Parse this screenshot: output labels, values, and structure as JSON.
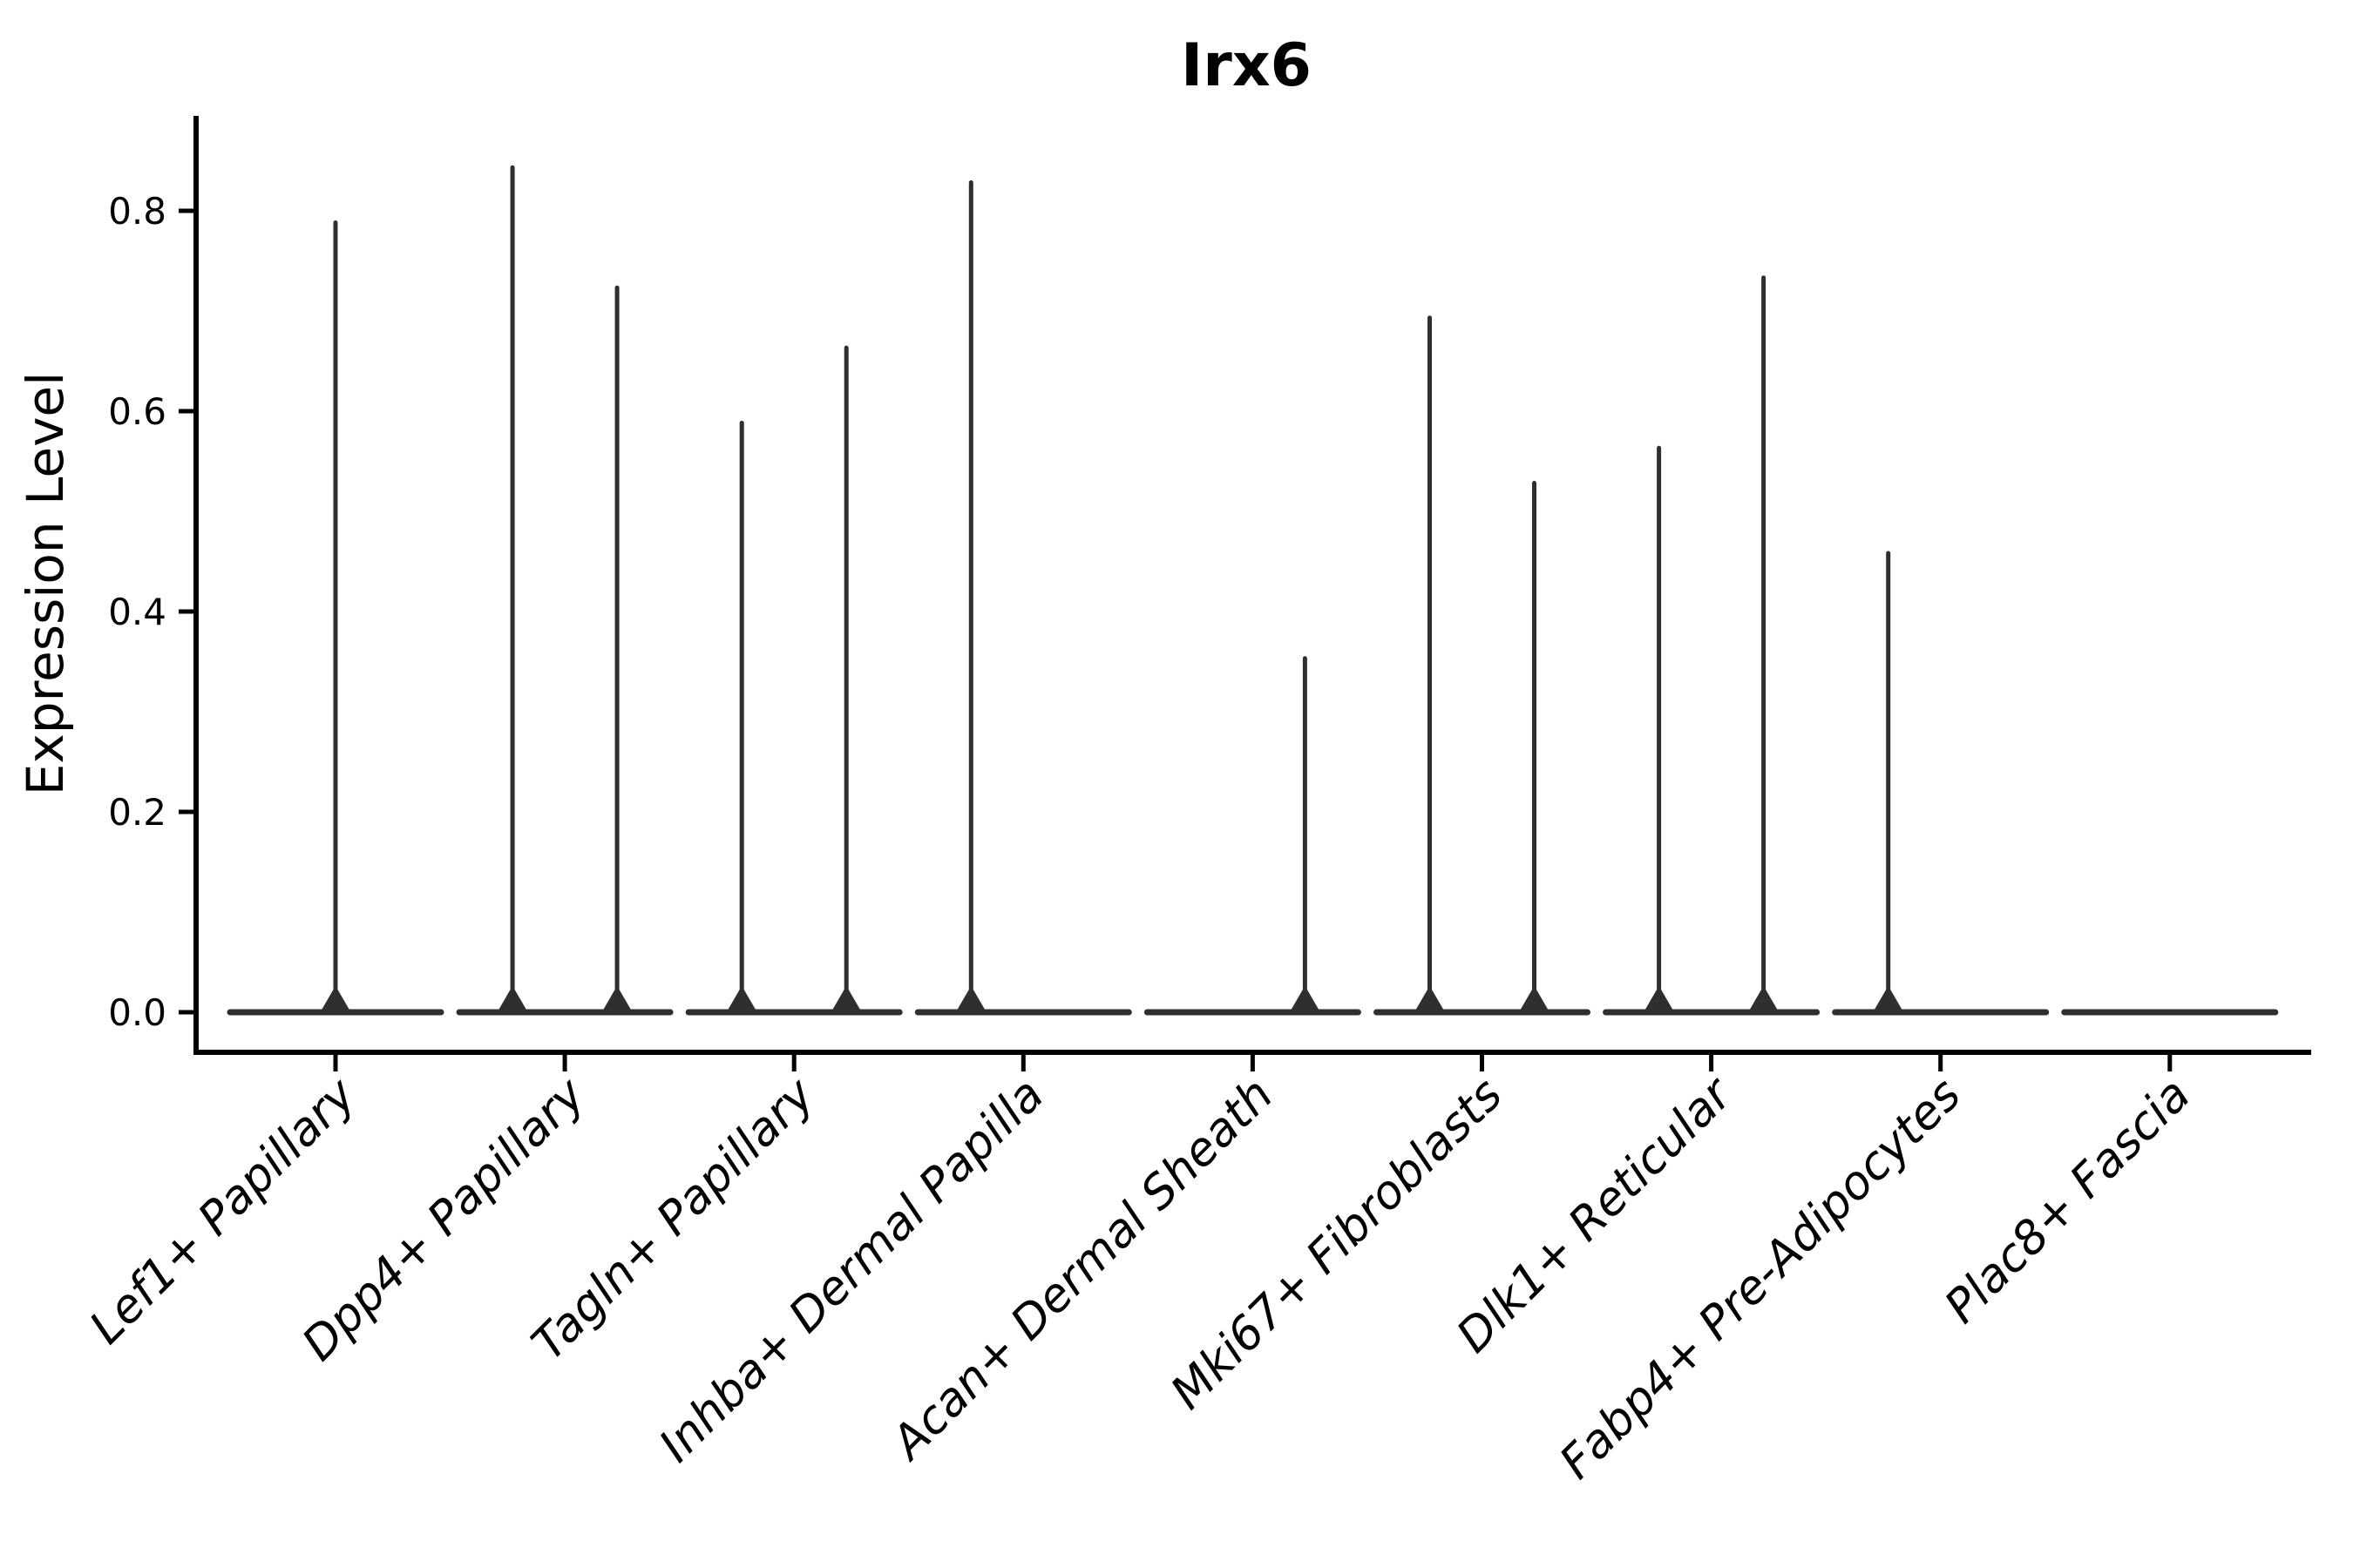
{
  "figure": {
    "background_color": "#ffffff"
  },
  "chart_data": {
    "type": "violin",
    "title": "Irx6",
    "xlabel": "",
    "ylabel": "Expression Level",
    "legend": "none",
    "grid": false,
    "ylim": [
      -0.04,
      0.895
    ],
    "y_ticks": [
      0.0,
      0.2,
      0.4,
      0.6,
      0.8
    ],
    "y_tick_labels": [
      "0.0",
      "0.2",
      "0.4",
      "0.6",
      "0.8"
    ],
    "x_tick_rotation_deg": 45,
    "categories": [
      "Lef1+ Papillary",
      "Dpp4+ Papillary",
      "Tagln+ Papillary",
      "Inhba+ Dermal Papilla",
      "Acan+ Dermal Sheath",
      "Mki67+ Fibroblasts",
      "Dlk1+ Reticular",
      "Fabp4+ Pre-Adipocytes",
      "Plac8+ Fascia"
    ],
    "violins": [
      {
        "category": "Lef1+ Papillary",
        "baseline_value": 0.0,
        "spikes": [
          {
            "position": "center",
            "max_value": 0.79
          }
        ]
      },
      {
        "category": "Dpp4+ Papillary",
        "baseline_value": 0.0,
        "spikes": [
          {
            "position": "left",
            "max_value": 0.845
          },
          {
            "position": "right",
            "max_value": 0.725
          }
        ]
      },
      {
        "category": "Tagln+ Papillary",
        "baseline_value": 0.0,
        "spikes": [
          {
            "position": "left",
            "max_value": 0.59
          },
          {
            "position": "right",
            "max_value": 0.665
          }
        ]
      },
      {
        "category": "Inhba+ Dermal Papilla",
        "baseline_value": 0.0,
        "spikes": [
          {
            "position": "left",
            "max_value": 0.83
          }
        ]
      },
      {
        "category": "Acan+ Dermal Sheath",
        "baseline_value": 0.0,
        "spikes": [
          {
            "position": "right",
            "max_value": 0.355
          }
        ]
      },
      {
        "category": "Mki67+ Fibroblasts",
        "baseline_value": 0.0,
        "spikes": [
          {
            "position": "left",
            "max_value": 0.695
          },
          {
            "position": "right",
            "max_value": 0.53
          }
        ]
      },
      {
        "category": "Dlk1+ Reticular",
        "baseline_value": 0.0,
        "spikes": [
          {
            "position": "left",
            "max_value": 0.565
          },
          {
            "position": "right",
            "max_value": 0.735
          }
        ]
      },
      {
        "category": "Fabp4+ Pre-Adipocytes",
        "baseline_value": 0.0,
        "spikes": [
          {
            "position": "left",
            "max_value": 0.46
          }
        ]
      },
      {
        "category": "Plac8+ Fascia",
        "baseline_value": 0.0,
        "spikes": []
      }
    ],
    "colors": {
      "violin_stroke": "#2f2f2f",
      "axis": "#000000",
      "text": "#000000",
      "background": "#ffffff"
    }
  }
}
